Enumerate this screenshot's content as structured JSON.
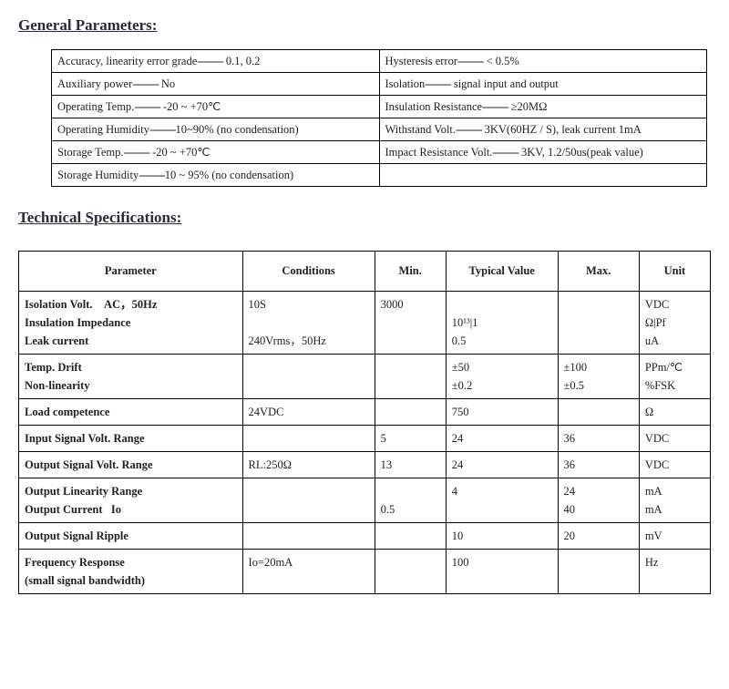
{
  "headings": {
    "general": "General Parameters:",
    "tech": "Technical Specifications:"
  },
  "dots": "---------",
  "table1": {
    "rows": [
      [
        {
          "label": "Accuracy, linearity error grade",
          "dots": true,
          "value": " 0.1, 0.2"
        },
        {
          "label": "Hysteresis error",
          "dots": true,
          "value": " < 0.5%"
        }
      ],
      [
        {
          "label": "Auxiliary power",
          "dots": true,
          "value": " No"
        },
        {
          "label": "Isolation",
          "dots": true,
          "value": " signal input and output"
        }
      ],
      [
        {
          "label": "Operating Temp.",
          "dots": true,
          "value": " -20 ~ +70℃"
        },
        {
          "label": "Insulation Resistance",
          "dots": true,
          "value": " ≥20MΩ"
        }
      ],
      [
        {
          "label": "Operating Humidity",
          "dots": true,
          "value": "10~90% (no condensation)"
        },
        {
          "label": "Withstand Volt.",
          "dots": true,
          "value": " 3KV(60HZ / S), leak current 1mA"
        }
      ],
      [
        {
          "label": "Storage Temp.",
          "dots": true,
          "value": " -20 ~ +70℃"
        },
        {
          "label": "Impact Resistance Volt.",
          "dots": true,
          "value": " 3KV, 1.2/50us(peak value)"
        }
      ],
      [
        {
          "label": "Storage Humidity",
          "dots": true,
          "value": "10 ~ 95%   (no condensation)"
        },
        {
          "label": "",
          "dots": false,
          "value": ""
        }
      ]
    ],
    "col_widths": [
      "50%",
      "50%"
    ]
  },
  "table2": {
    "headers": [
      "Parameter",
      "Conditions",
      "Min.",
      "Typical Value",
      "Max.",
      "Unit"
    ],
    "col_widths": [
      "220px",
      "130px",
      "70px",
      "110px",
      "80px",
      "70px"
    ],
    "rows": [
      {
        "param": "Isolation Volt.    AC，50Hz\nInsulation Impedance\nLeak current",
        "cond": "10S\n\n240Vrms，50Hz",
        "min": "3000\n\n",
        "typ": "\n10¹³|1\n0.5",
        "max": "",
        "unit": "VDC\nΩ|Pf\nuA"
      },
      {
        "param": "Temp. Drift\nNon-linearity",
        "cond": "",
        "min": "",
        "typ": "±50\n±0.2",
        "max": "±100\n±0.5",
        "unit": "PPm/℃\n%FSK"
      },
      {
        "param": "Load competence",
        "cond": "24VDC",
        "min": "",
        "typ": "750",
        "max": "",
        "unit": "Ω"
      },
      {
        "param": "Input Signal Volt. Range",
        "cond": "",
        "min": "5",
        "typ": "24",
        "max": "36",
        "unit": "VDC"
      },
      {
        "param": "Output Signal Volt. Range",
        "cond": "RL:250Ω",
        "min": "13",
        "typ": "24",
        "max": "36",
        "unit": "VDC"
      },
      {
        "param": "Output Linearity Range\nOutput Current   Io",
        "cond": "",
        "min": "\n0.5",
        "typ": "4\n",
        "max": "24\n40",
        "unit": "mA\nmA"
      },
      {
        "param": "Output Signal Ripple",
        "cond": "",
        "min": "",
        "typ": "10",
        "max": "20",
        "unit": "mV"
      },
      {
        "param": "Frequency Response\n(small signal bandwidth)",
        "cond": "Io=20mA",
        "min": "",
        "typ": "100",
        "max": "",
        "unit": "Hz"
      }
    ]
  }
}
